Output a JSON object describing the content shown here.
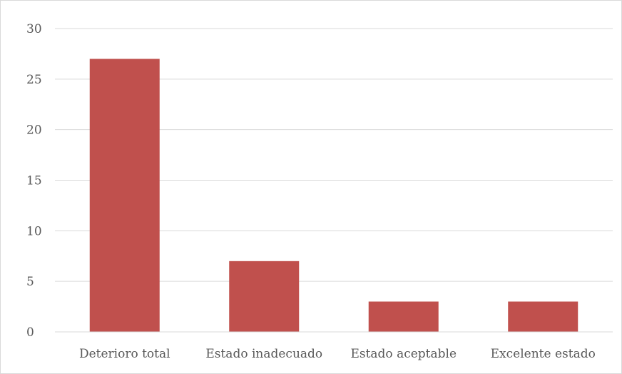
{
  "chart_data": {
    "type": "bar",
    "title": "",
    "xlabel": "",
    "ylabel": "",
    "categories": [
      "Deterioro total",
      "Estado inadecuado",
      "Estado aceptable",
      "Excelente estado"
    ],
    "values": [
      27,
      7,
      3,
      3
    ],
    "ylim": [
      0,
      30
    ],
    "yticks": [
      "0",
      "5",
      "10",
      "15",
      "20",
      "25",
      "30"
    ],
    "bar_color": "#c0504d",
    "grid": true,
    "legend": "none"
  }
}
